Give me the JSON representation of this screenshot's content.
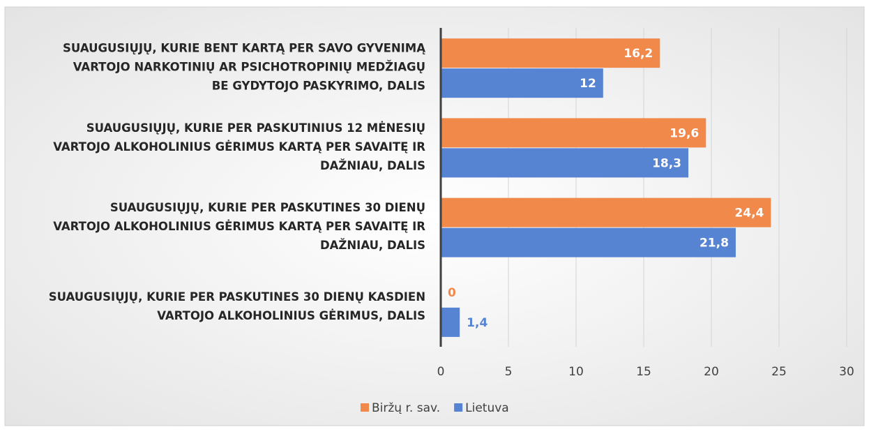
{
  "chart_data": {
    "type": "bar",
    "orientation": "horizontal",
    "categories": [
      [
        "SUAUGUSIŲJŲ, KURIE BENT KARTĄ PER SAVO GYVENIMĄ",
        "VARTOJO NARKOTINIŲ AR PSICHOTROPINIŲ MEDŽIAGŲ",
        "BE GYDYTOJO PASKYRIMO, DALIS"
      ],
      [
        "SUAUGUSIŲJŲ, KURIE PER PASKUTINIUS 12 MĖNESIŲ",
        "VARTOJO ALKOHOLINIUS GĖRIMUS KARTĄ PER SAVAITĘ IR",
        "DAŽNIAU, DALIS"
      ],
      [
        "SUAUGUSIŲJŲ, KURIE PER PASKUTINES 30 DIENŲ",
        "VARTOJO ALKOHOLINIUS GĖRIMUS KARTĄ PER SAVAITĘ IR",
        "DAŽNIAU, DALIS"
      ],
      [
        "SUAUGUSIŲJŲ, KURIE PER PASKUTINES 30 DIENŲ KASDIEN",
        "VARTOJO ALKOHOLINIUS GĖRIMUS, DALIS"
      ]
    ],
    "series": [
      {
        "name": "Biržų r. sav.",
        "color": "#F0894A",
        "values": [
          16.2,
          19.6,
          24.4,
          0
        ],
        "value_labels": [
          "16,2",
          "19,6",
          "24,4",
          "0"
        ]
      },
      {
        "name": "Lietuva",
        "color": "#5684D2",
        "values": [
          12,
          18.3,
          21.8,
          1.4
        ],
        "value_labels": [
          "12",
          "18,3",
          "21,8",
          "1,4"
        ]
      }
    ],
    "xlim": [
      0,
      30
    ],
    "xticks": [
      0,
      5,
      10,
      15,
      20,
      25,
      30
    ],
    "grid": true,
    "legend": "bottom"
  }
}
